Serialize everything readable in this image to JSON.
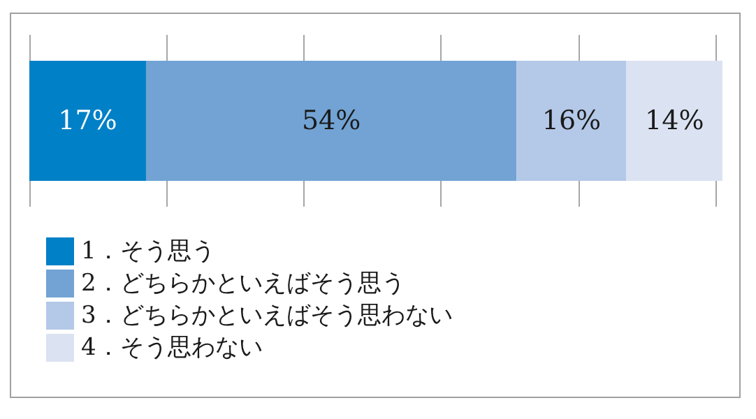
{
  "chart_data": {
    "type": "bar",
    "orientation": "horizontal",
    "stacked": true,
    "categories": [
      null
    ],
    "series": [
      {
        "name": "1．そう思う",
        "color": "#0080c6",
        "values": [
          17
        ],
        "value_labels": [
          "17%"
        ]
      },
      {
        "name": "2．どちらかといえばそう思う",
        "color": "#72a3d4",
        "values": [
          54
        ],
        "value_labels": [
          "54%"
        ]
      },
      {
        "name": "3．どちらかといえばそう思わない",
        "color": "#b4c8e8",
        "values": [
          16
        ],
        "value_labels": [
          "16%"
        ]
      },
      {
        "name": "4．そう思わない",
        "color": "#dbe3f2",
        "values": [
          14
        ],
        "value_labels": [
          "14%"
        ]
      }
    ],
    "xlim": [
      0,
      101
    ],
    "xticks": [
      {
        "value": 0,
        "label": null
      },
      {
        "value": 20,
        "label": null
      },
      {
        "value": 40,
        "label": null
      },
      {
        "value": 60,
        "label": null
      },
      {
        "value": 80,
        "label": null
      },
      {
        "value": 100,
        "label": null
      }
    ],
    "grid": "x",
    "legend": "bottom left"
  }
}
